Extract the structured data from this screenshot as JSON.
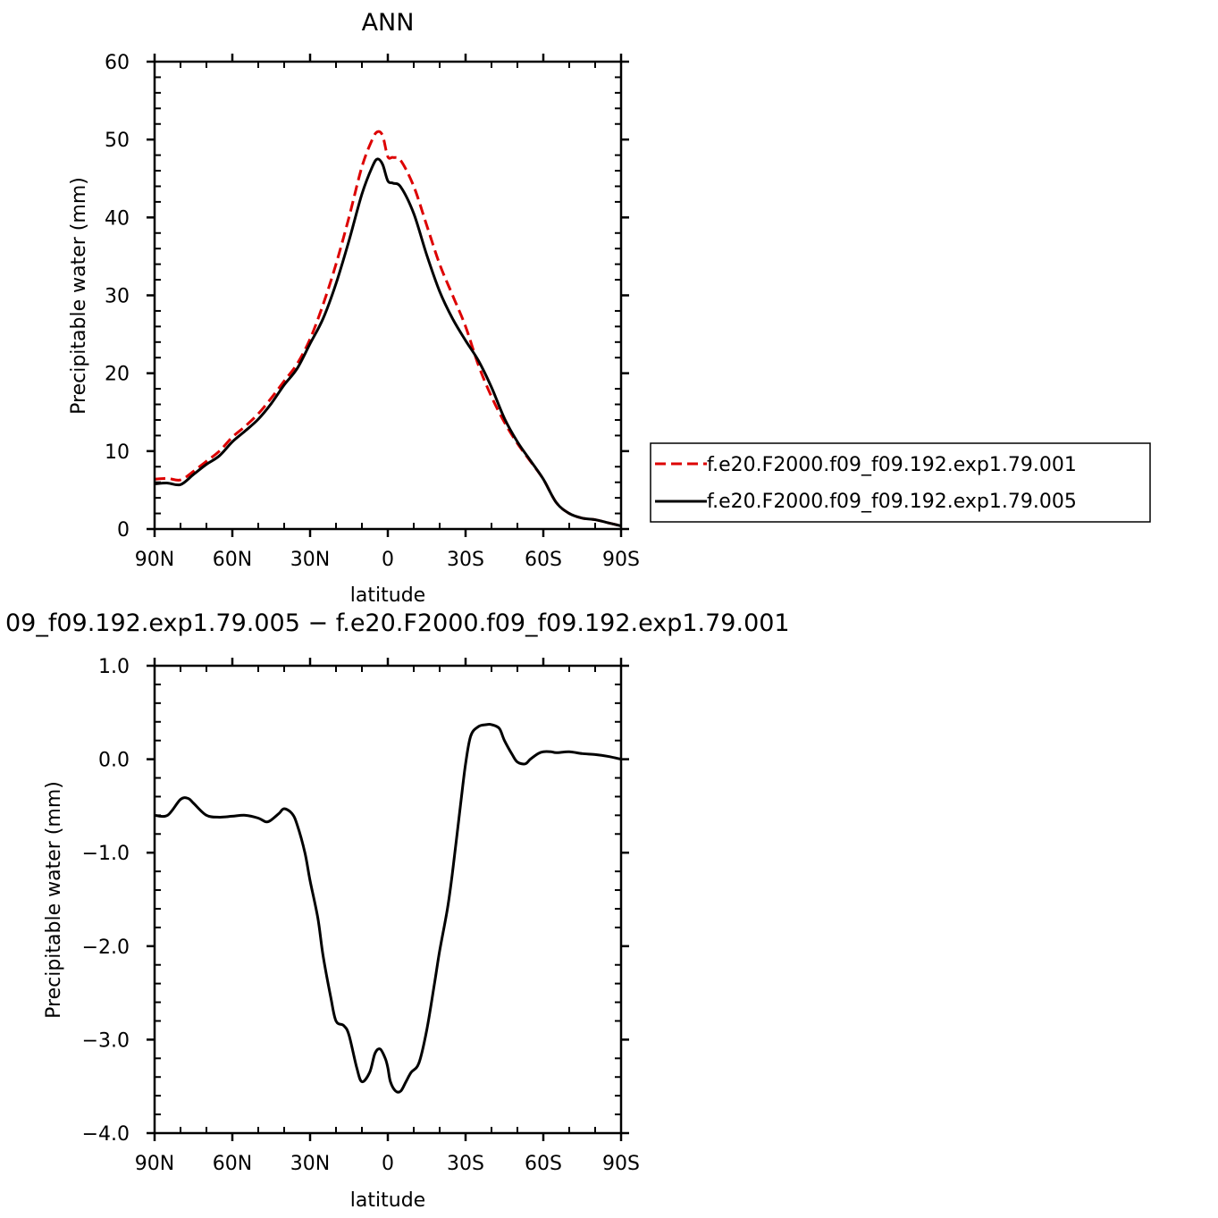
{
  "chart_data": [
    {
      "type": "line",
      "title": "ANN",
      "xlabel": "latitude",
      "ylabel": "Precipitable water (mm)",
      "xlim": [
        90,
        -90
      ],
      "ylim": [
        0,
        60
      ],
      "x_ticks": [
        90,
        60,
        30,
        0,
        -30,
        -60,
        -90
      ],
      "x_tick_labels": [
        "90N",
        "60N",
        "30N",
        "0",
        "30S",
        "60S",
        "90S"
      ],
      "y_ticks": [
        0,
        10,
        20,
        30,
        40,
        50,
        60
      ],
      "y_tick_labels": [
        "0",
        "10",
        "20",
        "30",
        "40",
        "50",
        "60"
      ],
      "grid": false,
      "legend_position": "right-outside-bottom",
      "series": [
        {
          "name": "f.e20.F2000.f09_f09.192.exp1.79.001",
          "color": "#dd0000",
          "dash": "dashed",
          "x": [
            90,
            85,
            80,
            75,
            70,
            65,
            60,
            55,
            50,
            45,
            40,
            35,
            30,
            25,
            20,
            15,
            10,
            6,
            4,
            2,
            0,
            -2,
            -5,
            -10,
            -15,
            -20,
            -25,
            -30,
            -35,
            -40,
            -45,
            -50,
            -55,
            -60,
            -65,
            -70,
            -75,
            -80,
            -85,
            -90
          ],
          "y": [
            6.4,
            6.5,
            6.3,
            7.4,
            8.7,
            10.0,
            11.8,
            13.2,
            14.8,
            16.8,
            19.0,
            21.2,
            24.4,
            28.8,
            34.0,
            40.0,
            46.5,
            50.0,
            51.0,
            50.5,
            47.8,
            47.7,
            47.3,
            44.0,
            39.0,
            34.0,
            30.0,
            26.0,
            21.0,
            17.0,
            13.7,
            11.0,
            8.7,
            6.4,
            3.4,
            2.0,
            1.4,
            1.2,
            0.8,
            0.4
          ]
        },
        {
          "name": "f.e20.F2000.f09_f09.192.exp1.79.005",
          "color": "#000000",
          "dash": "solid",
          "x": [
            90,
            85,
            80,
            75,
            70,
            65,
            60,
            55,
            50,
            45,
            40,
            35,
            30,
            25,
            20,
            15,
            10,
            6,
            4,
            2,
            0,
            -2,
            -5,
            -10,
            -15,
            -20,
            -25,
            -30,
            -35,
            -40,
            -45,
            -50,
            -55,
            -60,
            -65,
            -70,
            -75,
            -80,
            -85,
            -90
          ],
          "y": [
            5.8,
            5.9,
            5.7,
            7.0,
            8.3,
            9.4,
            11.2,
            12.6,
            14.1,
            16.1,
            18.5,
            20.6,
            23.8,
            27.0,
            31.5,
            37.0,
            43.0,
            46.5,
            47.5,
            46.8,
            44.7,
            44.4,
            43.9,
            40.5,
            35.2,
            30.5,
            27.0,
            24.2,
            21.6,
            18.2,
            14.2,
            11.2,
            8.8,
            6.4,
            3.4,
            2.0,
            1.4,
            1.2,
            0.8,
            0.4
          ]
        }
      ]
    },
    {
      "type": "line",
      "title": "09_f09.192.exp1.79.005 − f.e20.F2000.f09_f09.192.exp1.79.001",
      "xlabel": "latitude",
      "ylabel": "Precipitable water (mm)",
      "xlim": [
        90,
        -90
      ],
      "ylim": [
        -4.0,
        1.0
      ],
      "x_ticks": [
        90,
        60,
        30,
        0,
        -30,
        -60,
        -90
      ],
      "x_tick_labels": [
        "90N",
        "60N",
        "30N",
        "0",
        "30S",
        "60S",
        "90S"
      ],
      "y_ticks": [
        1.0,
        0.0,
        -1.0,
        -2.0,
        -3.0,
        -4.0
      ],
      "y_tick_labels": [
        "1.0",
        "0.0",
        "−1.0",
        "−2.0",
        "−3.0",
        "−4.0"
      ],
      "grid": false,
      "series": [
        {
          "color": "#000000",
          "dash": "solid",
          "x": [
            90,
            85,
            80,
            77,
            75,
            70,
            65,
            60,
            55,
            50,
            47,
            45,
            42,
            40,
            37,
            35,
            32,
            30,
            27,
            25,
            22,
            20,
            17,
            15,
            12,
            10,
            7,
            5,
            3,
            1,
            0,
            -1,
            -3,
            -5,
            -7,
            -9,
            -12,
            -15,
            -18,
            -20,
            -23,
            -25,
            -28,
            -30,
            -32,
            -35,
            -38,
            -40,
            -43,
            -45,
            -48,
            -50,
            -53,
            -55,
            -58,
            -60,
            -63,
            -65,
            -70,
            -75,
            -80,
            -85,
            -90
          ],
          "y": [
            -0.6,
            -0.6,
            -0.43,
            -0.42,
            -0.47,
            -0.6,
            -0.62,
            -0.61,
            -0.6,
            -0.63,
            -0.67,
            -0.65,
            -0.58,
            -0.53,
            -0.58,
            -0.7,
            -1.0,
            -1.3,
            -1.7,
            -2.1,
            -2.55,
            -2.8,
            -2.85,
            -2.95,
            -3.3,
            -3.45,
            -3.35,
            -3.15,
            -3.1,
            -3.2,
            -3.3,
            -3.45,
            -3.55,
            -3.55,
            -3.45,
            -3.35,
            -3.25,
            -2.9,
            -2.4,
            -2.05,
            -1.6,
            -1.2,
            -0.5,
            -0.05,
            0.25,
            0.35,
            0.37,
            0.37,
            0.33,
            0.2,
            0.05,
            -0.03,
            -0.05,
            0.0,
            0.06,
            0.08,
            0.08,
            0.07,
            0.08,
            0.06,
            0.05,
            0.03,
            0.0
          ]
        }
      ]
    }
  ]
}
